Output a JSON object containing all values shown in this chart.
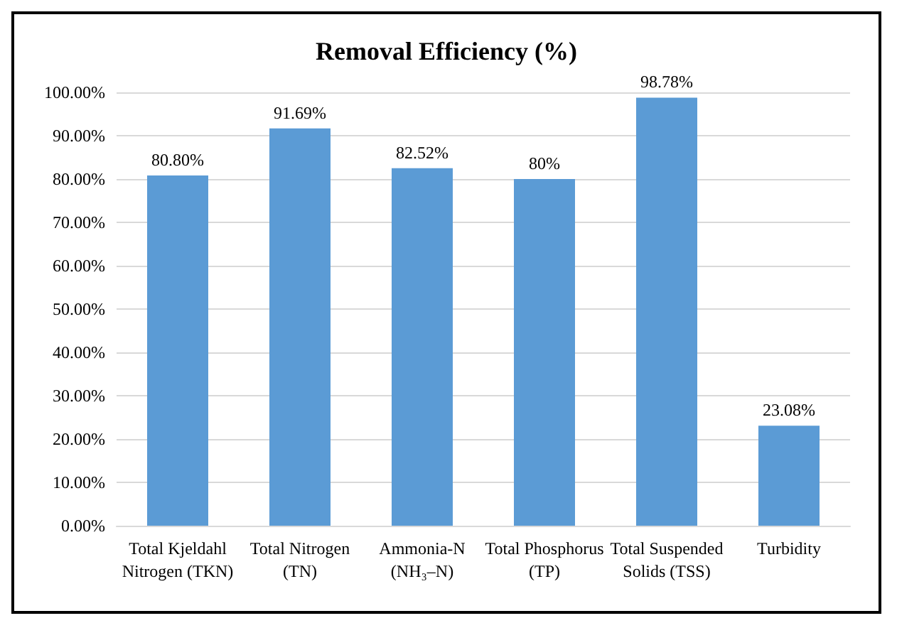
{
  "chart_data": {
    "type": "bar",
    "title": "Removal Efficiency (%)",
    "categories": [
      "Total Kjeldahl Nitrogen (TKN)",
      "Total Nitrogen (TN)",
      "Ammonia-N (NH₃–N)",
      "Total Phosphorus (TP)",
      "Total Suspended Solids (TSS)",
      "Turbidity"
    ],
    "values": [
      80.8,
      91.69,
      82.52,
      80,
      98.78,
      23.08
    ],
    "value_labels": [
      "80.80%",
      "91.69%",
      "82.52%",
      "80%",
      "98.78%",
      "23.08%"
    ],
    "color": "#5b9bd5",
    "ylim": [
      0,
      100
    ],
    "yticks": [
      {
        "value": 0,
        "label": "0.00%"
      },
      {
        "value": 10,
        "label": "10.00%"
      },
      {
        "value": 20,
        "label": "20.00%"
      },
      {
        "value": 30,
        "label": "30.00%"
      },
      {
        "value": 40,
        "label": "40.00%"
      },
      {
        "value": 50,
        "label": "50.00%"
      },
      {
        "value": 60,
        "label": "60.00%"
      },
      {
        "value": 70,
        "label": "70.00%"
      },
      {
        "value": 80,
        "label": "80.00%"
      },
      {
        "value": 90,
        "label": "90.00%"
      },
      {
        "value": 100,
        "label": "100.00%"
      }
    ],
    "grid": "y"
  }
}
